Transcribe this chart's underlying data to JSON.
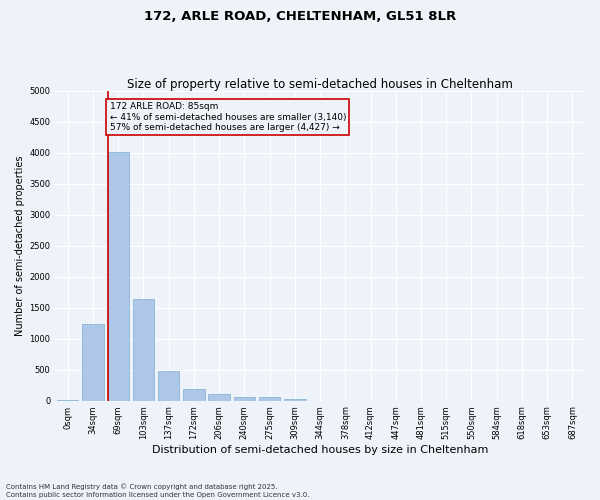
{
  "title1": "172, ARLE ROAD, CHELTENHAM, GL51 8LR",
  "title2": "Size of property relative to semi-detached houses in Cheltenham",
  "xlabel": "Distribution of semi-detached houses by size in Cheltenham",
  "ylabel": "Number of semi-detached properties",
  "categories": [
    "0sqm",
    "34sqm",
    "69sqm",
    "103sqm",
    "137sqm",
    "172sqm",
    "206sqm",
    "240sqm",
    "275sqm",
    "309sqm",
    "344sqm",
    "378sqm",
    "412sqm",
    "447sqm",
    "481sqm",
    "515sqm",
    "550sqm",
    "584sqm",
    "618sqm",
    "653sqm",
    "687sqm"
  ],
  "values": [
    10,
    1230,
    4020,
    1640,
    480,
    190,
    110,
    55,
    55,
    30,
    0,
    0,
    0,
    0,
    0,
    0,
    0,
    0,
    0,
    0,
    0
  ],
  "bar_color": "#aec6e8",
  "bar_edge_color": "#7aafd4",
  "vline_x_index": 2,
  "vline_color": "#cc0000",
  "annotation_title": "172 ARLE ROAD: 85sqm",
  "annotation_line2": "← 41% of semi-detached houses are smaller (3,140)",
  "annotation_line3": "57% of semi-detached houses are larger (4,427) →",
  "annotation_box_color": "#cc0000",
  "ylim": [
    0,
    5000
  ],
  "yticks": [
    0,
    500,
    1000,
    1500,
    2000,
    2500,
    3000,
    3500,
    4000,
    4500,
    5000
  ],
  "footnote1": "Contains HM Land Registry data © Crown copyright and database right 2025.",
  "footnote2": "Contains public sector information licensed under the Open Government Licence v3.0.",
  "bg_color": "#eef2f9",
  "grid_color": "#ffffff",
  "title1_fontsize": 9.5,
  "title2_fontsize": 8.5,
  "ylabel_fontsize": 7,
  "xlabel_fontsize": 8,
  "tick_fontsize": 6,
  "annot_fontsize": 6.5,
  "footnote_fontsize": 5
}
